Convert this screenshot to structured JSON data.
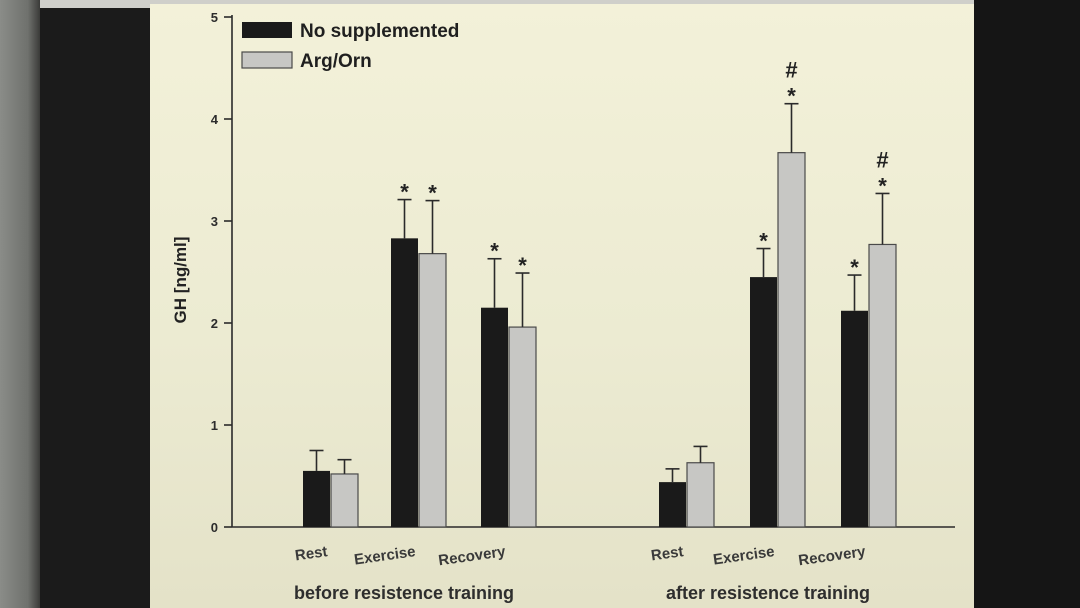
{
  "chart_data": {
    "type": "bar",
    "ylabel": "GH [ng/ml]",
    "ylim": [
      0,
      5
    ],
    "yticks": [
      "0",
      "1",
      "2",
      "3",
      "4",
      "5"
    ],
    "groups": [
      {
        "label": "before resistence training",
        "categories": [
          "Rest",
          "Exercise",
          "Recovery"
        ],
        "series": [
          {
            "name": "No supplemented",
            "values": [
              0.55,
              2.83,
              2.15
            ],
            "errors": [
              0.2,
              0.38,
              0.48
            ],
            "marks": [
              "",
              "*",
              "*"
            ]
          },
          {
            "name": "Arg/Orn",
            "values": [
              0.52,
              2.68,
              1.96
            ],
            "errors": [
              0.14,
              0.52,
              0.53
            ],
            "marks": [
              "",
              "*",
              "*"
            ]
          }
        ]
      },
      {
        "label": "after resistence training",
        "categories": [
          "Rest",
          "Exercise",
          "Recovery"
        ],
        "series": [
          {
            "name": "No supplemented",
            "values": [
              0.44,
              2.45,
              2.12
            ],
            "errors": [
              0.13,
              0.28,
              0.35
            ],
            "marks": [
              "",
              "*",
              "*"
            ]
          },
          {
            "name": "Arg/Orn",
            "values": [
              0.63,
              3.67,
              2.77
            ],
            "errors": [
              0.16,
              0.48,
              0.5
            ],
            "marks": [
              "",
              "#*",
              "#*"
            ]
          }
        ]
      }
    ],
    "legend": [
      {
        "name": "No supplemented",
        "color": "#1a1a1a"
      },
      {
        "name": "Arg/Orn",
        "color": "#c7c7c4"
      }
    ],
    "legend_position": "top-left"
  }
}
